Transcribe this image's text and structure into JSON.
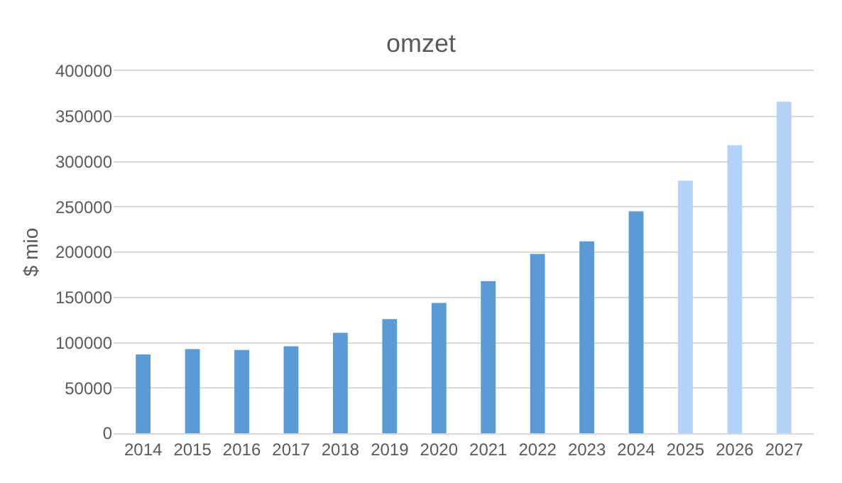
{
  "chart_data": {
    "type": "bar",
    "title": "omzet",
    "ylabel": "$ mio",
    "categories": [
      "2014",
      "2015",
      "2016",
      "2017",
      "2018",
      "2019",
      "2020",
      "2021",
      "2022",
      "2023",
      "2024",
      "2025",
      "2026",
      "2027"
    ],
    "values": [
      87000,
      93000,
      92000,
      96000,
      111000,
      126000,
      144000,
      168000,
      198000,
      212000,
      245000,
      279000,
      318000,
      366000
    ],
    "colors": [
      "#5b9bd5",
      "#5b9bd5",
      "#5b9bd5",
      "#5b9bd5",
      "#5b9bd5",
      "#5b9bd5",
      "#5b9bd5",
      "#5b9bd5",
      "#5b9bd5",
      "#5b9bd5",
      "#5b9bd5",
      "#b4d1f7",
      "#b4d1f7",
      "#b4d1f7"
    ],
    "ylim": [
      0,
      400000
    ],
    "yticks": [
      0,
      50000,
      100000,
      150000,
      200000,
      250000,
      300000,
      350000,
      400000
    ],
    "grid": "y"
  }
}
